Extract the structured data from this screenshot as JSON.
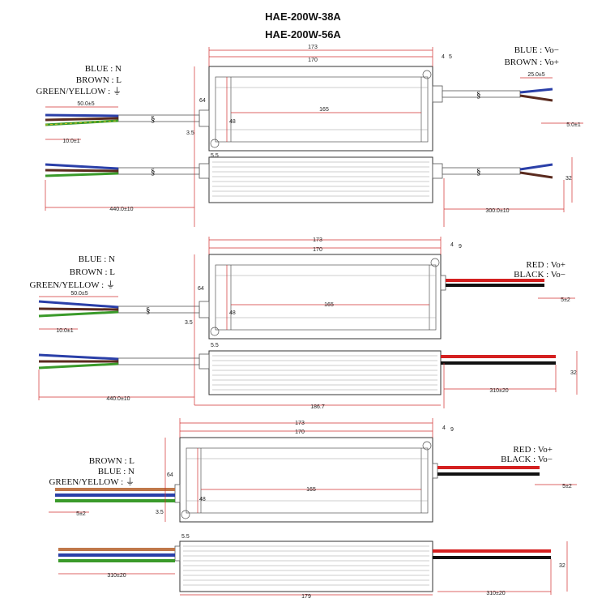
{
  "titles": [
    "HAE-200W-38A",
    "HAE-200W-56A"
  ],
  "colors": {
    "blue": "#2a3fa8",
    "brown": "#5a2a1e",
    "green": "#3a9a2a",
    "yellow": "#d8c020",
    "red": "#d42020",
    "black": "#111111",
    "dim_line": "#d23030"
  },
  "view1": {
    "legend_in": [
      "BLUE  :  N",
      "BROWN  :  L",
      "GREEN/YELLOW  :  ⏚"
    ],
    "legend_out": [
      "BLUE  :  Vo−",
      "BROWN  :  Vo+"
    ],
    "dims": {
      "len_outer": "173",
      "len_inner": "170",
      "hole_span": "165",
      "height": "64",
      "hole_h": "48",
      "edge_35": "3.5",
      "edge_55": "5.5",
      "slot_4": "4",
      "slot_5": "5",
      "strip_in": "50.0±5",
      "strip_in_end": "10.0±1",
      "strip_out": "25.0±5",
      "strip_out_end": "5.0±1",
      "cable_in": "440.0±10",
      "cable_out": "300.0±10",
      "thick": "32"
    }
  },
  "view2": {
    "legend_in": [
      "BLUE  :  N",
      "BROWN  :  L",
      "GREEN/YELLOW  :  ⏚"
    ],
    "legend_out": [
      "RED  :  Vo+",
      "BLACK  :  Vo−"
    ],
    "dims": {
      "len_outer": "173",
      "len_inner": "170",
      "hole_span": "165",
      "height": "64",
      "hole_h": "48",
      "edge_35": "3.5",
      "edge_55": "5.5",
      "slot_4": "4",
      "slot_9": "9",
      "strip_in": "50.0±5",
      "strip_in_end": "10.0±1",
      "strip_out_end": "5±2",
      "cable_in": "440.0±10",
      "body_len": "186.7",
      "cable_out": "310±20",
      "thick": "32"
    }
  },
  "view3": {
    "legend_in": [
      "BROWN  :  L",
      "BLUE  :  N",
      "GREEN/YELLOW  :  ⏚"
    ],
    "legend_out": [
      "RED  :  Vo+",
      "BLACK  :  Vo−"
    ],
    "dims": {
      "len_outer": "173",
      "len_inner": "170",
      "hole_span": "165",
      "height": "64",
      "hole_h": "48",
      "edge_35": "3.5",
      "edge_55": "5.5",
      "slot_4": "4",
      "slot_9": "9",
      "strip_in_end": "5±2",
      "strip_out_end": "5±2",
      "cable_in": "310±20",
      "body_len": "179",
      "cable_out": "310±20",
      "thick": "32"
    }
  }
}
